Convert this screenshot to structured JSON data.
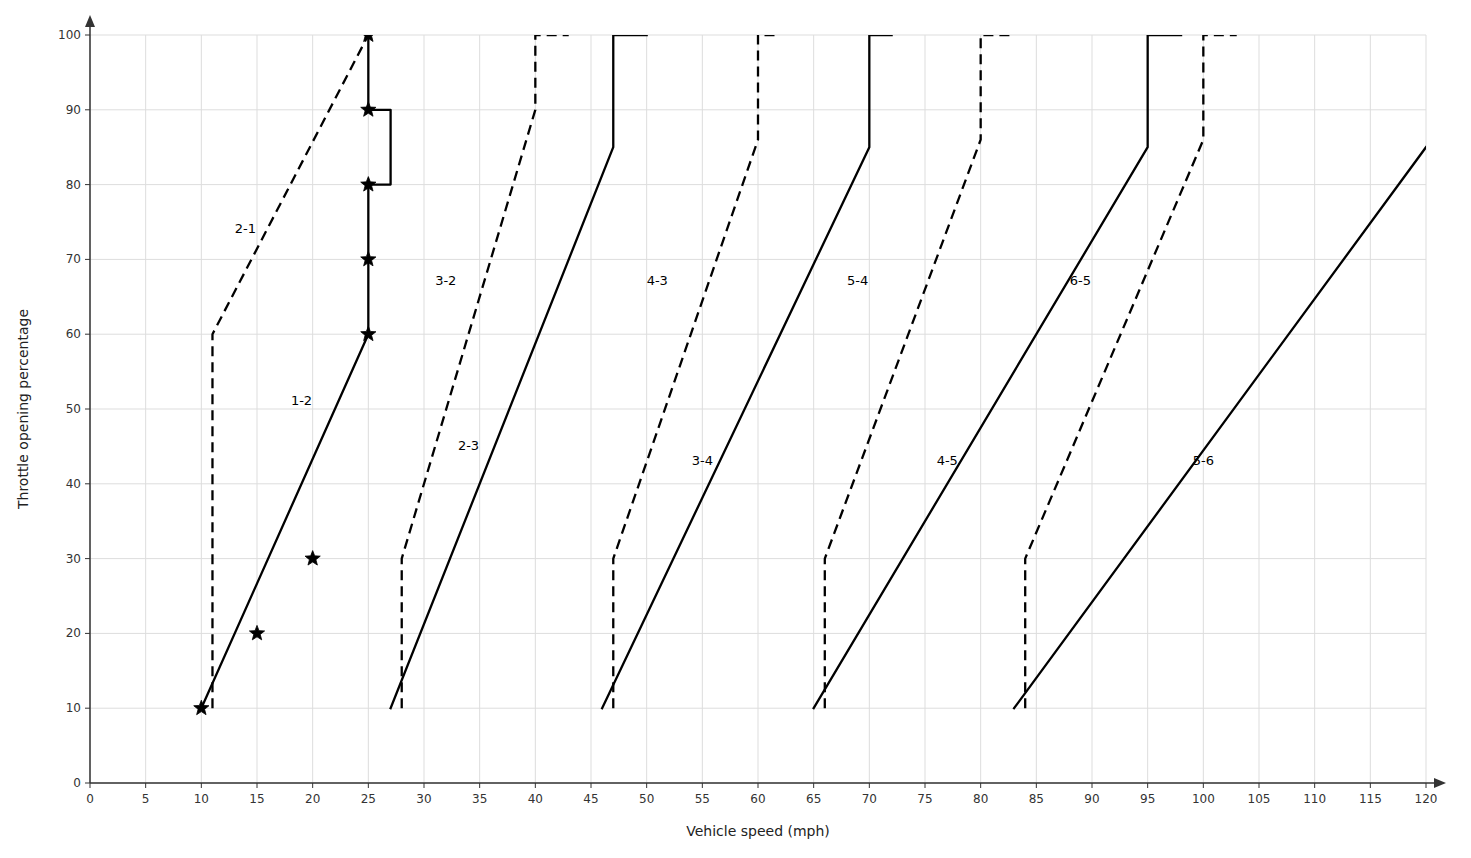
{
  "chart_data": {
    "type": "line",
    "xlabel": "Vehicle speed (mph)",
    "ylabel": "Throttle opening percentage",
    "xlim": [
      0,
      120
    ],
    "ylim": [
      0,
      100
    ],
    "xticks": [
      0,
      5,
      10,
      15,
      20,
      25,
      30,
      35,
      40,
      45,
      50,
      55,
      60,
      65,
      70,
      75,
      80,
      85,
      90,
      95,
      100,
      105,
      110,
      115,
      120
    ],
    "yticks": [
      0,
      10,
      20,
      30,
      40,
      50,
      60,
      70,
      80,
      90,
      100
    ],
    "grid": true,
    "color": "#000000",
    "series": [
      {
        "name": "1-2",
        "line_style": "solid",
        "x": [
          10,
          25,
          25,
          27,
          27,
          25,
          25
        ],
        "values": [
          10,
          60,
          80,
          80,
          90,
          90,
          100
        ],
        "label_x": 19,
        "label_y": 50
      },
      {
        "name": "2-3",
        "line_style": "solid",
        "x": [
          27,
          47,
          47,
          50
        ],
        "values": [
          10,
          85,
          100,
          100
        ],
        "label_x": 34,
        "label_y": 44
      },
      {
        "name": "3-4",
        "line_style": "solid",
        "x": [
          46,
          70,
          70,
          72
        ],
        "values": [
          10,
          85,
          100,
          100
        ],
        "label_x": 55,
        "label_y": 42
      },
      {
        "name": "4-5",
        "line_style": "solid",
        "x": [
          65,
          95,
          95,
          98
        ],
        "values": [
          10,
          85,
          100,
          100
        ],
        "label_x": 77,
        "label_y": 42
      },
      {
        "name": "5-6",
        "line_style": "solid",
        "x": [
          83,
          120
        ],
        "values": [
          10,
          85
        ],
        "label_x": 100,
        "label_y": 42
      },
      {
        "name": "2-1",
        "line_style": "dashed",
        "x": [
          11,
          11,
          25,
          25
        ],
        "values": [
          10,
          60,
          100,
          100
        ],
        "label_x": 13,
        "label_y": 73
      },
      {
        "name": "3-2",
        "line_style": "dashed",
        "x": [
          28,
          28,
          40,
          40,
          43
        ],
        "values": [
          10,
          30,
          90,
          100,
          100
        ],
        "label_x": 31,
        "label_y": 66
      },
      {
        "name": "4-3",
        "line_style": "dashed",
        "x": [
          47,
          47,
          60,
          60,
          62
        ],
        "values": [
          10,
          30,
          86,
          100,
          100
        ],
        "label_x": 50,
        "label_y": 66
      },
      {
        "name": "5-4",
        "line_style": "dashed",
        "x": [
          66,
          66,
          80,
          80,
          83
        ],
        "values": [
          10,
          30,
          86,
          100,
          100
        ],
        "label_x": 68,
        "label_y": 66
      },
      {
        "name": "6-5",
        "line_style": "dashed",
        "x": [
          84,
          84,
          100,
          100,
          103
        ],
        "values": [
          10,
          30,
          86,
          100,
          100
        ],
        "label_x": 88,
        "label_y": 66
      },
      {
        "type": "scatter",
        "marker": "star",
        "x": [
          10,
          15,
          20,
          25,
          25,
          25,
          25,
          25
        ],
        "values": [
          10,
          20,
          30,
          60,
          70,
          80,
          90,
          100
        ]
      }
    ]
  }
}
